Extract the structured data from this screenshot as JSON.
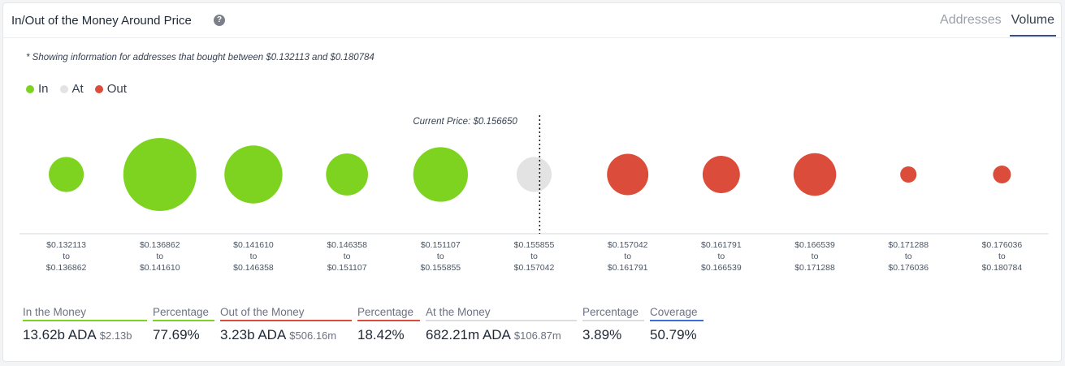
{
  "header": {
    "title": "In/Out of the Money Around Price",
    "tabs": [
      {
        "label": "Addresses",
        "active": false
      },
      {
        "label": "Volume",
        "active": true
      }
    ]
  },
  "note": "* Showing information for addresses that bought between $0.132113 and $0.180784",
  "legend": [
    {
      "label": "In",
      "color": "#7ed321"
    },
    {
      "label": "At",
      "color": "#e3e3e3"
    },
    {
      "label": "Out",
      "color": "#db4c3a"
    }
  ],
  "chart_data": {
    "type": "bubble",
    "current_price_label": "Current Price: $0.156650",
    "current_price": 0.15665,
    "categories": [
      {
        "from": "$0.132113",
        "to": "$0.136862",
        "status": "In",
        "relative_volume": 0.23
      },
      {
        "from": "$0.136862",
        "to": "$0.141610",
        "status": "In",
        "relative_volume": 1.0
      },
      {
        "from": "$0.141610",
        "to": "$0.146358",
        "status": "In",
        "relative_volume": 0.63
      },
      {
        "from": "$0.146358",
        "to": "$0.151107",
        "status": "In",
        "relative_volume": 0.33
      },
      {
        "from": "$0.151107",
        "to": "$0.155855",
        "status": "In",
        "relative_volume": 0.56
      },
      {
        "from": "$0.155855",
        "to": "$0.157042",
        "status": "At",
        "relative_volume": 0.23
      },
      {
        "from": "$0.157042",
        "to": "$0.161791",
        "status": "Out",
        "relative_volume": 0.32
      },
      {
        "from": "$0.161791",
        "to": "$0.166539",
        "status": "Out",
        "relative_volume": 0.26
      },
      {
        "from": "$0.166539",
        "to": "$0.171288",
        "status": "Out",
        "relative_volume": 0.34
      },
      {
        "from": "$0.171288",
        "to": "$0.176036",
        "status": "Out",
        "relative_volume": 0.05
      },
      {
        "from": "$0.176036",
        "to": "$0.180784",
        "status": "Out",
        "relative_volume": 0.06
      }
    ],
    "to_word": "to"
  },
  "stats": [
    {
      "label": "In the Money",
      "value": "13.62b ADA",
      "sub": "$2.13b",
      "underline": "#7ed321"
    },
    {
      "label": "Percentage",
      "value": "77.69%",
      "sub": "",
      "underline": "#7ed321"
    },
    {
      "label": "Out of the Money",
      "value": "3.23b ADA",
      "sub": "$506.16m",
      "underline": "#db4c3a"
    },
    {
      "label": "Percentage",
      "value": "18.42%",
      "sub": "",
      "underline": "#db4c3a"
    },
    {
      "label": "At the Money",
      "value": "682.21m ADA",
      "sub": "$106.87m",
      "underline": "#dddddd"
    },
    {
      "label": "Percentage",
      "value": "3.89%",
      "sub": "",
      "underline": "#dddddd"
    },
    {
      "label": "Coverage",
      "value": "50.79%",
      "sub": "",
      "underline": "#3b6fd8"
    }
  ]
}
